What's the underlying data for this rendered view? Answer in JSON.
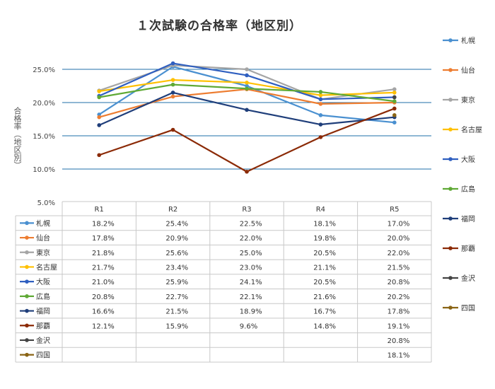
{
  "chart_data": {
    "type": "line",
    "title": "１次試験の合格率（地区別）",
    "ylabel": "合格率（地区別）",
    "categories": [
      "R1",
      "R2",
      "R3",
      "R4",
      "R5"
    ],
    "y_ticks": [
      "25.0%",
      "20.0%",
      "15.0%",
      "10.0%",
      "5.0%"
    ],
    "ylim": [
      5,
      27
    ],
    "grid": true,
    "legend_position": "right",
    "series": [
      {
        "name": "札幌",
        "color": "#4a90d0",
        "values": [
          18.2,
          25.4,
          22.5,
          18.1,
          17.0
        ],
        "labels": [
          "18.2%",
          "25.4%",
          "22.5%",
          "18.1%",
          "17.0%"
        ]
      },
      {
        "name": "仙台",
        "color": "#ed7d31",
        "values": [
          17.8,
          20.9,
          22.0,
          19.8,
          20.0
        ],
        "labels": [
          "17.8%",
          "20.9%",
          "22.0%",
          "19.8%",
          "20.0%"
        ]
      },
      {
        "name": "東京",
        "color": "#a5a5a5",
        "values": [
          21.8,
          25.6,
          25.0,
          20.5,
          22.0
        ],
        "labels": [
          "21.8%",
          "25.6%",
          "25.0%",
          "20.5%",
          "22.0%"
        ]
      },
      {
        "name": "名古屋",
        "color": "#ffc000",
        "values": [
          21.7,
          23.4,
          23.0,
          21.1,
          21.5
        ],
        "labels": [
          "21.7%",
          "23.4%",
          "23.0%",
          "21.1%",
          "21.5%"
        ]
      },
      {
        "name": "大阪",
        "color": "#2f5fc0",
        "values": [
          21.0,
          25.9,
          24.1,
          20.5,
          20.8
        ],
        "labels": [
          "21.0%",
          "25.9%",
          "24.1%",
          "20.5%",
          "20.8%"
        ]
      },
      {
        "name": "広島",
        "color": "#5fa935",
        "values": [
          20.8,
          22.7,
          22.1,
          21.6,
          20.2
        ],
        "labels": [
          "20.8%",
          "22.7%",
          "22.1%",
          "21.6%",
          "20.2%"
        ]
      },
      {
        "name": "福岡",
        "color": "#1f3e7a",
        "values": [
          16.6,
          21.5,
          18.9,
          16.7,
          17.8
        ],
        "labels": [
          "16.6%",
          "21.5%",
          "18.9%",
          "16.7%",
          "17.8%"
        ]
      },
      {
        "name": "那覇",
        "color": "#8b2a06",
        "values": [
          12.1,
          15.9,
          9.6,
          14.8,
          19.1
        ],
        "labels": [
          "12.1%",
          "15.9%",
          "9.6%",
          "14.8%",
          "19.1%"
        ]
      },
      {
        "name": "金沢",
        "color": "#444444",
        "values": [
          null,
          null,
          null,
          null,
          20.8
        ],
        "labels": [
          "",
          "",
          "",
          "",
          "20.8%"
        ]
      },
      {
        "name": "四国",
        "color": "#8a6414",
        "values": [
          null,
          null,
          null,
          null,
          18.1
        ],
        "labels": [
          "",
          "",
          "",
          "",
          "18.1%"
        ]
      }
    ]
  }
}
